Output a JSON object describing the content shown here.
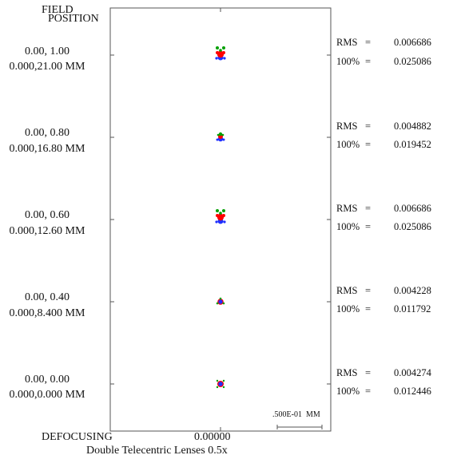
{
  "header": {
    "line1": "FIELD",
    "line2": "POSITION"
  },
  "fields": [
    {
      "norm": "0.00, 1.00",
      "actual": "0.000,21.00 MM",
      "rms_label": "RMS",
      "rms_eq": "=",
      "rms_value": "0.006686",
      "p100_label": "100%",
      "p100_eq": "=",
      "p100_value": "0.025086"
    },
    {
      "norm": "0.00, 0.80",
      "actual": "0.000,16.80 MM",
      "rms_label": "RMS",
      "rms_eq": "=",
      "rms_value": "0.004882",
      "p100_label": "100%",
      "p100_eq": "=",
      "p100_value": "0.019452"
    },
    {
      "norm": "0.00, 0.60",
      "actual": "0.000,12.60 MM",
      "rms_label": "RMS",
      "rms_eq": "=",
      "rms_value": "0.006686",
      "p100_label": "100%",
      "p100_eq": "=",
      "p100_value": "0.025086"
    },
    {
      "norm": "0.00, 0.40",
      "actual": "0.000,8.400 MM",
      "rms_label": "RMS",
      "rms_eq": "=",
      "rms_value": "0.004228",
      "p100_label": "100%",
      "p100_eq": "=",
      "p100_value": "0.011792"
    },
    {
      "norm": "0.00, 0.00",
      "actual": "0.000,0.000 MM",
      "rms_label": "RMS",
      "rms_eq": "=",
      "rms_value": "0.004274",
      "p100_label": "100%",
      "p100_eq": "=",
      "p100_value": "0.012446"
    }
  ],
  "scale_label": ".500E-01  MM",
  "footer": {
    "defocus_label": "DEFOCUSING",
    "defocus_value": "0.00000",
    "title": "Double Telecentric Lenses 0.5x"
  },
  "colors": {
    "frame": "#555555",
    "text": "#111111",
    "wave1": "#2030ff",
    "wave2": "#00a000",
    "wave3": "#ff0000"
  }
}
